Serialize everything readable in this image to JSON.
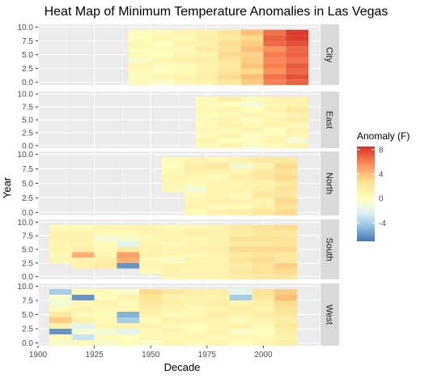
{
  "chart_data": {
    "type": "heatmap",
    "title": "Heat Map of Minimum Temperature Anomalies in Las Vegas",
    "xlabel": "Decade",
    "ylabel": "Year",
    "x_ticks": [
      1900,
      1925,
      1950,
      1975,
      2000
    ],
    "y_ticks": [
      "0.0",
      "2.5",
      "5.0",
      "7.5",
      "10.0"
    ],
    "x_range": [
      1900,
      2025
    ],
    "y_range": [
      -0.5,
      10.5
    ],
    "grid": true,
    "facets": [
      {
        "name": "City",
        "decades": [
          1940,
          1950,
          1960,
          1970,
          1980,
          1990,
          2000,
          2010
        ],
        "values": [
          [
            0.5,
            -0.5,
            0.8,
            1.0,
            2.0,
            3.5,
            6.0,
            7.0
          ],
          [
            0.2,
            0.6,
            1.0,
            1.5,
            3.0,
            4.0,
            6.5,
            7.5
          ],
          [
            0.4,
            0.0,
            0.5,
            1.2,
            2.5,
            3.0,
            5.5,
            6.8
          ],
          [
            0.8,
            0.5,
            0.3,
            1.0,
            2.0,
            3.8,
            6.0,
            7.2
          ],
          [
            -0.5,
            0.8,
            1.2,
            1.5,
            2.2,
            3.5,
            5.8,
            6.5
          ],
          [
            0.5,
            0.2,
            0.8,
            1.0,
            3.0,
            3.2,
            6.2,
            7.0
          ],
          [
            0.3,
            0.5,
            0.6,
            1.8,
            2.5,
            4.0,
            5.5,
            6.8
          ],
          [
            0.6,
            0.0,
            1.0,
            1.0,
            2.8,
            3.5,
            6.8,
            7.5
          ],
          [
            0.2,
            0.8,
            0.5,
            1.5,
            2.0,
            3.0,
            7.0,
            8.0
          ],
          [
            0.5,
            0.4,
            0.9,
            1.2,
            2.5,
            4.0,
            6.5,
            8.2
          ]
        ]
      },
      {
        "name": "East",
        "decades": [
          1970,
          1980,
          1990,
          2000,
          2010
        ],
        "values": [
          [
            0.5,
            1.0,
            -0.5,
            0.5,
            1.0
          ],
          [
            0.8,
            0.0,
            0.3,
            1.0,
            -1.0
          ],
          [
            0.2,
            1.0,
            -0.2,
            0.5,
            0.8
          ],
          [
            0.6,
            0.5,
            0.8,
            0.0,
            1.2
          ],
          [
            0.3,
            1.2,
            0.5,
            1.0,
            0.5
          ],
          [
            0.5,
            0.8,
            0.0,
            1.0,
            1.5
          ],
          [
            0.2,
            0.5,
            1.0,
            0.5,
            1.0
          ],
          [
            0.6,
            1.0,
            0.2,
            1.2,
            1.8
          ],
          [
            0.4,
            0.0,
            -1.0,
            0.8,
            1.0
          ],
          [
            0.5,
            1.5,
            0.5,
            1.0,
            1.2
          ]
        ]
      },
      {
        "name": "North",
        "decades": [
          1955,
          1965,
          1975,
          1985,
          1995,
          2005
        ],
        "values": [
          [
            null,
            0.5,
            1.0,
            1.5,
            2.0,
            3.0
          ],
          [
            null,
            1.0,
            0.5,
            0.5,
            1.5,
            2.5
          ],
          [
            null,
            0.8,
            1.2,
            1.0,
            1.0,
            3.0
          ],
          [
            null,
            0.5,
            0.8,
            0.5,
            2.0,
            2.0
          ],
          [
            0.5,
            -1.0,
            1.0,
            1.0,
            1.5,
            2.5
          ],
          [
            0.8,
            0.5,
            1.0,
            1.0,
            1.0,
            2.0
          ],
          [
            1.0,
            0.8,
            0.5,
            1.5,
            2.0,
            3.0
          ],
          [
            0.5,
            1.5,
            1.0,
            1.0,
            2.0,
            2.5
          ],
          [
            0.2,
            1.5,
            2.0,
            -1.0,
            1.0,
            3.0
          ],
          [
            0.5,
            1.0,
            0.8,
            1.2,
            2.0,
            2.0
          ]
        ]
      },
      {
        "name": "South",
        "decades": [
          1905,
          1915,
          1925,
          1935,
          1945,
          1955,
          1965,
          1975,
          1985,
          1995,
          2005
        ],
        "values": [
          [
            null,
            null,
            null,
            null,
            null,
            0.8,
            1.0,
            1.2,
            1.5,
            2.0,
            2.2
          ],
          [
            null,
            null,
            null,
            null,
            0.5,
            1.0,
            0.8,
            1.0,
            2.0,
            2.5,
            3.0
          ],
          [
            null,
            1.0,
            2.0,
            -6.0,
            0.8,
            1.2,
            1.0,
            1.0,
            1.5,
            2.5,
            3.5
          ],
          [
            1.0,
            1.0,
            1.5,
            4.5,
            0.5,
            -0.5,
            1.0,
            0.8,
            2.5,
            3.0,
            2.0
          ],
          [
            0.5,
            4.5,
            0.8,
            5.0,
            1.2,
            0.8,
            0.5,
            1.0,
            2.0,
            2.5,
            2.0
          ],
          [
            1.0,
            1.5,
            0.5,
            2.0,
            1.0,
            1.0,
            1.2,
            1.5,
            3.0,
            3.0,
            3.0
          ],
          [
            0.8,
            1.0,
            0.3,
            -2.0,
            1.0,
            0.5,
            1.0,
            1.0,
            2.0,
            2.0,
            2.5
          ],
          [
            1.2,
            1.2,
            -1.0,
            -0.5,
            0.5,
            1.0,
            0.8,
            1.2,
            2.5,
            2.5,
            2.5
          ],
          [
            1.0,
            1.0,
            0.5,
            0.5,
            1.0,
            1.0,
            1.5,
            1.0,
            1.5,
            2.0,
            2.0
          ],
          [
            0.5,
            0.5,
            1.0,
            1.0,
            1.0,
            0.5,
            0.8,
            1.2,
            2.0,
            2.5,
            3.0
          ]
        ]
      },
      {
        "name": "West",
        "decades": [
          1905,
          1915,
          1925,
          1935,
          1945,
          1955,
          1965,
          1975,
          1985,
          1995,
          2005
        ],
        "values": [
          [
            -0.5,
            0.5,
            -0.5,
            0.5,
            -0.5,
            1.0,
            0.5,
            0.8,
            0.2,
            1.0,
            1.5
          ],
          [
            0.3,
            -3.0,
            0.5,
            0.2,
            0.8,
            0.5,
            1.0,
            0.5,
            0.8,
            0.5,
            1.0
          ],
          [
            -6.0,
            -0.8,
            -1.0,
            -2.0,
            0.5,
            1.0,
            0.5,
            1.0,
            -0.5,
            0.0,
            1.5
          ],
          [
            1.0,
            -2.0,
            0.8,
            1.0,
            1.0,
            0.5,
            0.2,
            0.8,
            1.0,
            0.5,
            2.0
          ],
          [
            3.5,
            1.0,
            0.5,
            -4.0,
            0.5,
            1.2,
            1.0,
            1.0,
            0.5,
            1.0,
            1.5
          ],
          [
            2.0,
            0.5,
            0.2,
            -5.0,
            1.0,
            0.5,
            0.8,
            1.5,
            1.0,
            1.5,
            2.0
          ],
          [
            0.5,
            1.0,
            0.5,
            0.8,
            1.5,
            1.0,
            0.5,
            1.0,
            1.5,
            1.0,
            2.5
          ],
          [
            -1.0,
            0.5,
            1.0,
            0.5,
            2.0,
            1.5,
            1.0,
            1.5,
            0.8,
            1.5,
            3.0
          ],
          [
            -0.5,
            -6.0,
            0.2,
            1.0,
            2.5,
            1.0,
            1.2,
            1.0,
            -4.0,
            2.0,
            4.0
          ],
          [
            -4.0,
            0.5,
            0.5,
            -0.5,
            3.0,
            2.0,
            1.5,
            1.5,
            -2.0,
            2.5,
            3.5
          ]
        ]
      }
    ],
    "legend": {
      "title": "Anomaly (F)",
      "ticks": [
        8,
        4,
        0,
        -4
      ],
      "range": [
        -7,
        8.5
      ],
      "placement": "right",
      "colors": [
        "#4575b4",
        "#91bfdb",
        "#e0f3f8",
        "#ffffbf",
        "#fee090",
        "#fc8d59",
        "#d73027"
      ]
    },
    "panel_bg": "#ebebeb",
    "strip_bg": "#d9d9d9",
    "grid_color": "#ffffff"
  }
}
